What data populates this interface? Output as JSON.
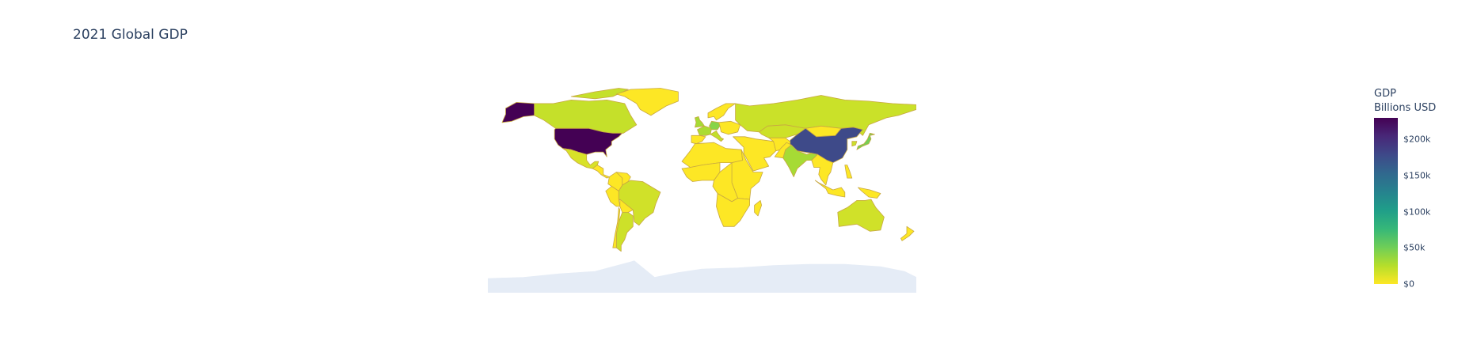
{
  "figure": {
    "title": "2021 Global GDP"
  },
  "chart_data": {
    "type": "choropleth",
    "title": "2021 Global GDP",
    "projection": "equirectangular",
    "colorscale": "Viridis (reversed)",
    "colorscale_stops": [
      "#fde725",
      "#b5de2b",
      "#6ece58",
      "#35b779",
      "#1f9e89",
      "#26828e",
      "#31688e",
      "#3e4989",
      "#482878",
      "#440154"
    ],
    "colorbar": {
      "title_lines": [
        "GDP",
        "Billions USD"
      ],
      "range": [
        0,
        230000
      ],
      "tick_values": [
        0,
        50000,
        100000,
        150000,
        200000
      ],
      "tick_labels": [
        "$0",
        "$50k",
        "$100k",
        "$150k",
        "$200k"
      ]
    },
    "missing_color": "#e5ecf6",
    "border_color": "#c8a842",
    "regions": [
      {
        "name": "United States",
        "value": 230000
      },
      {
        "name": "China",
        "value": 178000
      },
      {
        "name": "Japan",
        "value": 49000
      },
      {
        "name": "Germany",
        "value": 42000
      },
      {
        "name": "India",
        "value": 31000
      },
      {
        "name": "United Kingdom",
        "value": 31000
      },
      {
        "name": "France",
        "value": 29000
      },
      {
        "name": "Italy",
        "value": 21000
      },
      {
        "name": "Canada",
        "value": 20000
      },
      {
        "name": "Russia",
        "value": 18000
      },
      {
        "name": "Brazil",
        "value": 16000
      },
      {
        "name": "Australia",
        "value": 16000
      },
      {
        "name": "South Korea",
        "value": 18000
      },
      {
        "name": "Mexico",
        "value": 13000
      },
      {
        "name": "Greenland",
        "value": 0
      }
    ]
  }
}
